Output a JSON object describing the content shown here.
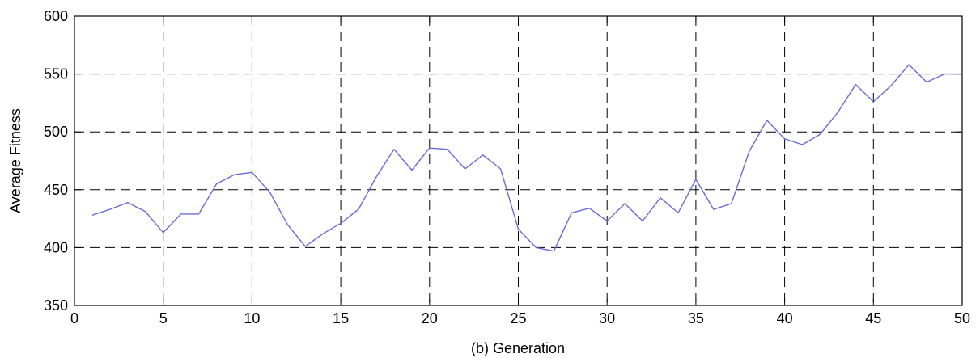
{
  "chart_data": {
    "type": "line",
    "xlabel": "(b) Generation",
    "ylabel": "Average Fitness",
    "xlim": [
      0,
      50
    ],
    "ylim": [
      350,
      600
    ],
    "xticks": [
      0,
      5,
      10,
      15,
      20,
      25,
      30,
      35,
      40,
      45,
      50
    ],
    "yticks": [
      350,
      400,
      450,
      500,
      550,
      600
    ],
    "grid": true,
    "grid_style": "dashed",
    "line_color": "#6b6bd8",
    "series": [
      {
        "x": [
          1,
          2,
          3,
          4,
          5,
          6,
          7,
          8,
          9,
          10,
          11,
          12,
          13,
          14,
          15,
          16,
          17,
          18,
          19,
          20,
          21,
          22,
          23,
          24,
          25,
          26,
          27,
          28,
          29,
          30,
          31,
          32,
          33,
          34,
          35,
          36,
          37,
          38,
          39,
          40,
          41,
          42,
          43,
          44,
          45,
          46,
          47,
          48,
          49,
          50
        ],
        "values": [
          428,
          433,
          439,
          431,
          413,
          429,
          429,
          455,
          463,
          465,
          448,
          420,
          401,
          412,
          421,
          433,
          461,
          485,
          467,
          486,
          485,
          468,
          480,
          468,
          416,
          400,
          397,
          430,
          434,
          423,
          438,
          423,
          443,
          430,
          459,
          433,
          438,
          483,
          510,
          494,
          489,
          498,
          517,
          541,
          526,
          540,
          558,
          543,
          550,
          550
        ]
      }
    ]
  }
}
